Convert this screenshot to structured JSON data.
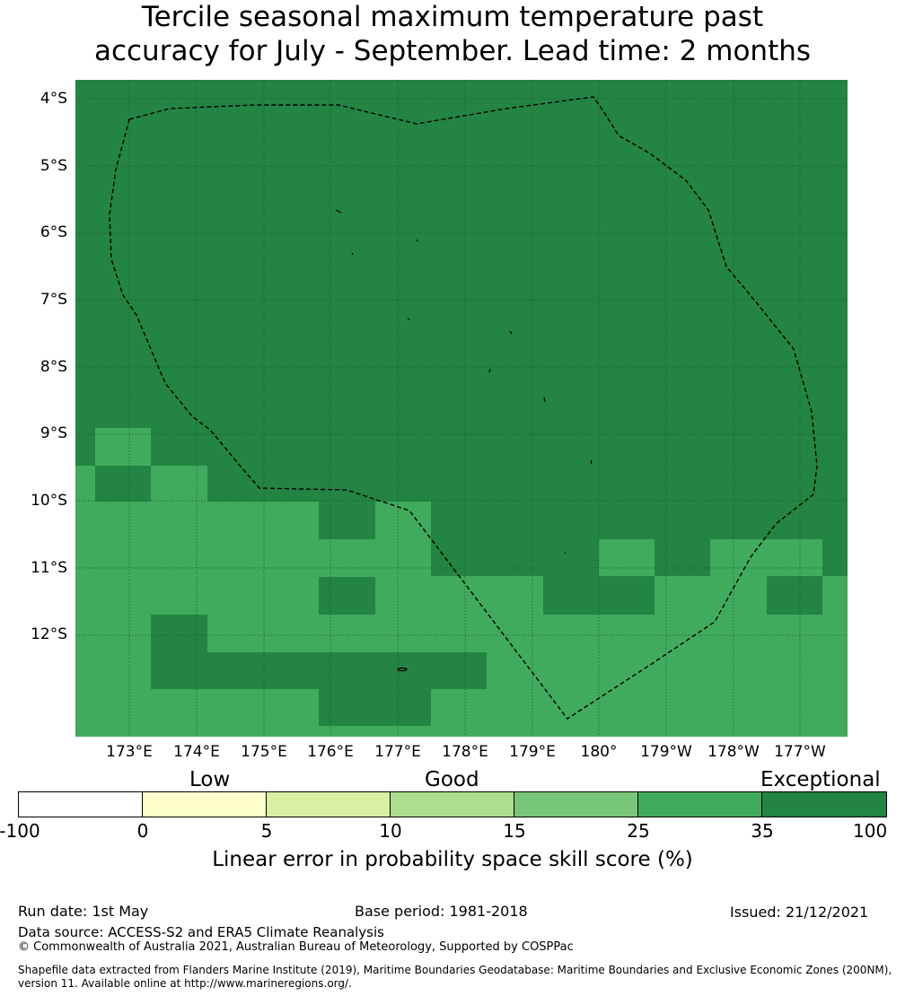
{
  "title": {
    "line1": "Tercile seasonal maximum temperature past",
    "line2": "accuracy for July - September. Lead time: 2 months"
  },
  "map": {
    "lat_labels": [
      "4°S",
      "5°S",
      "6°S",
      "7°S",
      "8°S",
      "9°S",
      "10°S",
      "11°S",
      "12°S"
    ],
    "lon_labels": [
      "173°E",
      "174°E",
      "175°E",
      "176°E",
      "177°E",
      "178°E",
      "179°E",
      "180°",
      "179°W",
      "178°W",
      "177°W"
    ],
    "colors": {
      "cat_25_35": "#41ab5d",
      "cat_35_100": "#238443",
      "grid": "#1f5a32",
      "boundary": "#000000"
    }
  },
  "colorbar": {
    "categories": [
      "Low",
      "Good",
      "Exceptional"
    ],
    "ticks": [
      "-100",
      "0",
      "5",
      "10",
      "15",
      "25",
      "35",
      "100"
    ],
    "segment_colors": [
      "#ffffff",
      "#ffffcc",
      "#d9f0a3",
      "#addd8e",
      "#78c679",
      "#41ab5d",
      "#238443"
    ],
    "label": "Linear error in probability space skill score (%)"
  },
  "footer": {
    "run_date": "Run date: 1st May",
    "base_period": "Base period: 1981-2018",
    "issued": "Issued: 21/12/2021",
    "data_source": "Data source: ACCESS-S2 and ERA5 Climate Reanalysis",
    "copyright": "© Commonwealth of Australia 2021, Australian Bureau of Meteorology, Supported by COSPPac",
    "shapefile_line1": "Shapefile data extracted from Flanders Marine Institute (2019), Maritime Boundaries Geodatabase: Maritime Boundaries and Exclusive Economic Zones (200NM),",
    "shapefile_line2": "version 11. Available online at http://www.marineregions.org/."
  }
}
